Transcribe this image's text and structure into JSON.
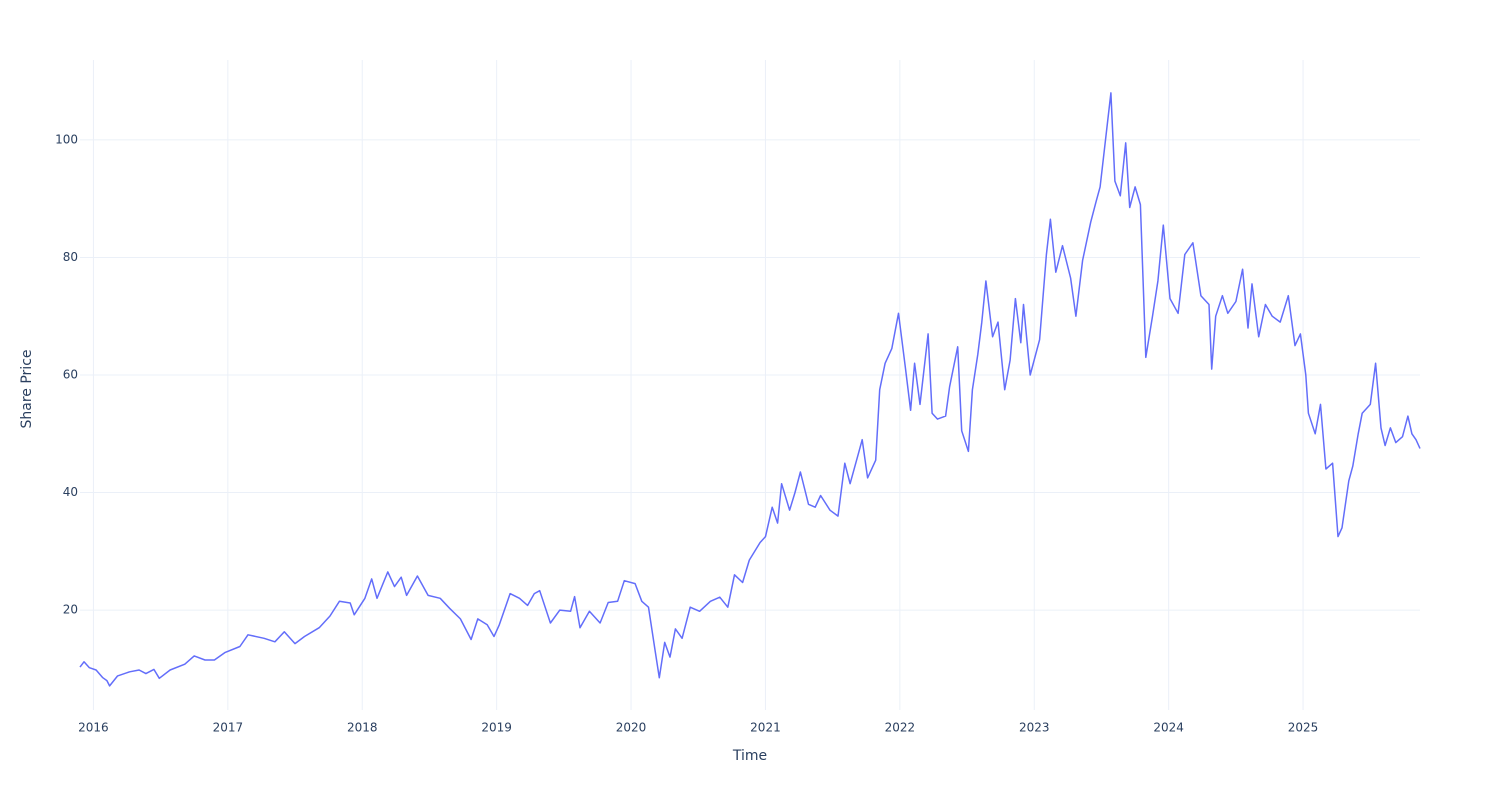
{
  "chart_data": {
    "type": "line",
    "x_label": "Time",
    "y_label": "Share Price",
    "x": [
      2015.9,
      2015.93,
      2015.97,
      2016.02,
      2016.07,
      2016.1,
      2016.12,
      2016.18,
      2016.27,
      2016.34,
      2016.39,
      2016.45,
      2016.49,
      2016.57,
      2016.68,
      2016.75,
      2016.83,
      2016.9,
      2016.98,
      2017.09,
      2017.15,
      2017.27,
      2017.35,
      2017.42,
      2017.5,
      2017.57,
      2017.68,
      2017.76,
      2017.83,
      2017.91,
      2017.94,
      2018.02,
      2018.07,
      2018.11,
      2018.19,
      2018.24,
      2018.29,
      2018.33,
      2018.41,
      2018.49,
      2018.58,
      2018.65,
      2018.73,
      2018.81,
      2018.86,
      2018.93,
      2018.98,
      2019.02,
      2019.1,
      2019.17,
      2019.23,
      2019.28,
      2019.32,
      2019.4,
      2019.47,
      2019.55,
      2019.58,
      2019.62,
      2019.69,
      2019.77,
      2019.83,
      2019.9,
      2019.95,
      2020.03,
      2020.08,
      2020.13,
      2020.18,
      2020.21,
      2020.25,
      2020.29,
      2020.33,
      2020.38,
      2020.44,
      2020.51,
      2020.59,
      2020.66,
      2020.72,
      2020.77,
      2020.83,
      2020.88,
      2020.96,
      2021.0,
      2021.05,
      2021.09,
      2021.12,
      2021.18,
      2021.22,
      2021.26,
      2021.32,
      2021.37,
      2021.41,
      2021.48,
      2021.54,
      2021.59,
      2021.63,
      2021.69,
      2021.72,
      2021.76,
      2021.82,
      2021.85,
      2021.89,
      2021.94,
      2021.99,
      2022.04,
      2022.08,
      2022.11,
      2022.15,
      2022.21,
      2022.24,
      2022.28,
      2022.34,
      2022.37,
      2022.43,
      2022.46,
      2022.51,
      2022.54,
      2022.58,
      2022.61,
      2022.64,
      2022.69,
      2022.73,
      2022.78,
      2022.82,
      2022.86,
      2022.9,
      2022.92,
      2022.97,
      2023.04,
      2023.09,
      2023.12,
      2023.16,
      2023.21,
      2023.27,
      2023.31,
      2023.36,
      2023.42,
      2023.46,
      2023.49,
      2023.53,
      2023.57,
      2023.6,
      2023.64,
      2023.68,
      2023.71,
      2023.75,
      2023.79,
      2023.83,
      2023.88,
      2023.92,
      2023.96,
      2024.01,
      2024.07,
      2024.12,
      2024.18,
      2024.24,
      2024.3,
      2024.32,
      2024.35,
      2024.4,
      2024.44,
      2024.5,
      2024.55,
      2024.59,
      2024.62,
      2024.67,
      2024.72,
      2024.77,
      2024.83,
      2024.89,
      2024.94,
      2024.98,
      2025.02,
      2025.04,
      2025.09,
      2025.13,
      2025.17,
      2025.22,
      2025.26,
      2025.29,
      2025.34,
      2025.37,
      2025.41,
      2025.44,
      2025.5,
      2025.54,
      2025.58,
      2025.61,
      2025.65,
      2025.69,
      2025.74,
      2025.78,
      2025.81,
      2025.84,
      2025.87
    ],
    "values": [
      10.3,
      11.2,
      10.2,
      9.8,
      8.5,
      8.0,
      7.1,
      8.8,
      9.5,
      9.8,
      9.2,
      9.9,
      8.4,
      9.8,
      10.8,
      12.2,
      11.5,
      11.5,
      12.8,
      13.8,
      15.8,
      15.2,
      14.6,
      16.3,
      14.3,
      15.5,
      17.0,
      19.0,
      21.5,
      21.2,
      19.2,
      22.0,
      25.3,
      22.0,
      26.5,
      24.0,
      25.6,
      22.5,
      25.8,
      22.5,
      22.0,
      20.3,
      18.5,
      15.0,
      18.5,
      17.5,
      15.5,
      17.5,
      22.8,
      22.0,
      20.8,
      22.8,
      23.3,
      17.8,
      20.0,
      19.8,
      22.3,
      17.0,
      19.8,
      17.8,
      21.3,
      21.5,
      25.0,
      24.5,
      21.5,
      20.5,
      13.0,
      8.5,
      14.5,
      12.0,
      16.8,
      15.2,
      20.5,
      19.8,
      21.5,
      22.2,
      20.5,
      26.0,
      24.7,
      28.5,
      31.5,
      32.5,
      37.5,
      34.8,
      41.5,
      37.0,
      40.0,
      43.5,
      38.0,
      37.5,
      39.5,
      37.0,
      36.0,
      45.0,
      41.5,
      46.5,
      49.0,
      42.5,
      45.5,
      57.5,
      62.0,
      64.5,
      70.5,
      61.5,
      54.0,
      62.0,
      55.0,
      67.0,
      53.5,
      52.5,
      53.0,
      58.0,
      64.8,
      50.5,
      47.0,
      57.5,
      63.5,
      69.0,
      76.0,
      66.5,
      69.0,
      57.5,
      62.5,
      73.0,
      65.5,
      72.0,
      60.0,
      66.0,
      80.5,
      86.5,
      77.5,
      82.0,
      76.5,
      70.0,
      79.5,
      86.0,
      89.5,
      92.0,
      100.0,
      108.0,
      93.0,
      90.5,
      99.5,
      88.5,
      92.0,
      89.0,
      63.0,
      70.0,
      76.0,
      85.5,
      73.0,
      70.5,
      80.5,
      82.5,
      73.5,
      72.0,
      61.0,
      70.0,
      73.5,
      70.5,
      72.5,
      78.0,
      68.0,
      75.5,
      66.5,
      72.0,
      70.0,
      69.0,
      73.5,
      65.0,
      67.0,
      60.0,
      53.5,
      50.0,
      55.0,
      44.0,
      45.0,
      32.5,
      34.0,
      42.0,
      44.5,
      50.0,
      53.5,
      55.0,
      62.0,
      51.0,
      48.0,
      51.0,
      48.5,
      49.5,
      53.0,
      50.0,
      49.0,
      47.5
    ],
    "color": "#636efa",
    "xlim": [
      2015.9,
      2025.87
    ],
    "xticks": [
      2016,
      2017,
      2018,
      2019,
      2020,
      2021,
      2022,
      2023,
      2024,
      2025
    ],
    "ylim": [
      3,
      113.6
    ],
    "yticks": [
      20,
      40,
      60,
      80,
      100
    ],
    "grid": true
  }
}
